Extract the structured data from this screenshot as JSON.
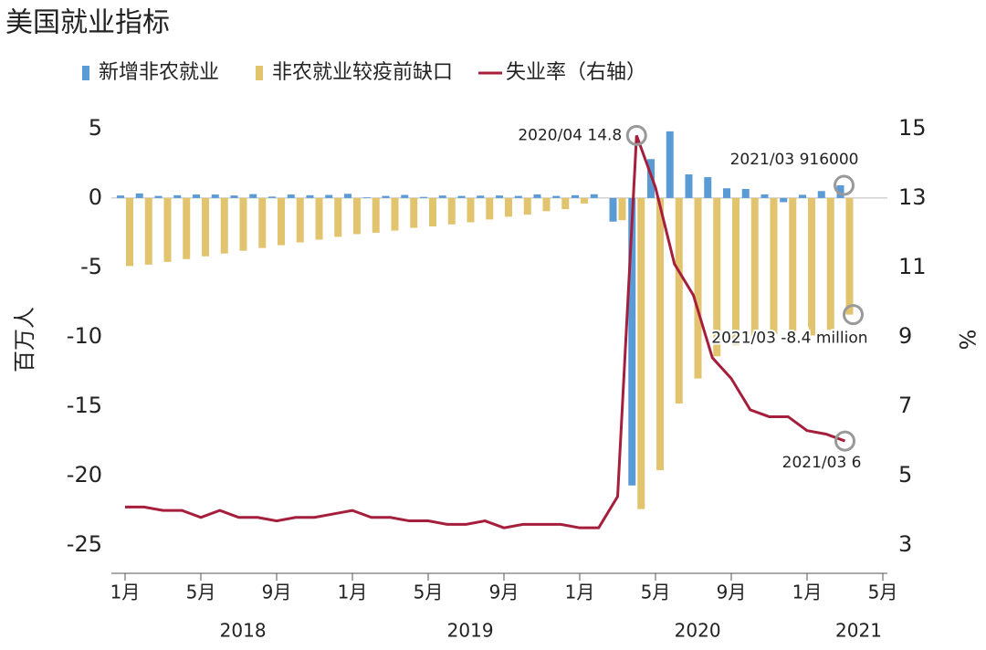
{
  "chart_data": {
    "type": "bar_line",
    "title": "美国就业指标",
    "ylabel": "百万人",
    "y2label": "%",
    "categories": [
      "1月",
      null,
      null,
      null,
      "5月",
      null,
      null,
      null,
      "9月",
      null,
      null,
      null,
      "1月",
      null,
      null,
      null,
      "5月",
      null,
      null,
      null,
      "9月",
      null,
      null,
      null,
      "1月",
      null,
      null,
      null,
      "5月",
      null,
      null,
      null,
      "9月",
      null,
      null,
      null,
      "1月",
      null,
      null,
      null,
      "5月"
    ],
    "years": [
      "2018",
      "2019",
      "2020",
      "2021"
    ],
    "series": [
      {
        "name": "新增非农就业",
        "type": "bar",
        "color": "#5b9bd5",
        "axis": "y",
        "values": [
          0.18,
          0.33,
          0.15,
          0.2,
          0.25,
          0.25,
          0.18,
          0.28,
          0.1,
          0.25,
          0.2,
          0.22,
          0.3,
          0.05,
          0.15,
          0.22,
          0.08,
          0.18,
          0.15,
          0.17,
          0.18,
          0.15,
          0.26,
          0.15,
          0.2,
          0.27,
          -1.7,
          -20.7,
          2.8,
          4.8,
          1.7,
          1.5,
          0.7,
          0.65,
          0.26,
          -0.3,
          0.23,
          0.5,
          0.916,
          null,
          null
        ]
      },
      {
        "name": "非农就业较疫前缺口",
        "type": "bar",
        "color": "#e2c46e",
        "axis": "y",
        "values": [
          -4.9,
          -4.8,
          -4.6,
          -4.4,
          -4.2,
          -4.0,
          -3.8,
          -3.6,
          -3.4,
          -3.2,
          -3.0,
          -2.8,
          -2.6,
          -2.5,
          -2.35,
          -2.15,
          -2.05,
          -1.9,
          -1.75,
          -1.55,
          -1.35,
          -1.2,
          -0.95,
          -0.8,
          -0.4,
          0,
          -1.6,
          -22.4,
          -19.6,
          -14.8,
          -13.0,
          -11.4,
          -10.6,
          -10.0,
          -9.8,
          -10.1,
          -9.9,
          -9.5,
          -8.4,
          null,
          null
        ]
      },
      {
        "name": "失业率（右轴）",
        "type": "line",
        "color": "#a51f3c",
        "axis": "y2",
        "values": [
          4.1,
          4.1,
          4.0,
          4.0,
          3.8,
          4.0,
          3.8,
          3.8,
          3.7,
          3.8,
          3.8,
          3.9,
          4.0,
          3.8,
          3.8,
          3.7,
          3.7,
          3.6,
          3.6,
          3.7,
          3.5,
          3.6,
          3.6,
          3.6,
          3.5,
          3.5,
          4.4,
          14.8,
          13.3,
          11.1,
          10.2,
          8.4,
          7.8,
          6.9,
          6.7,
          6.7,
          6.3,
          6.2,
          6.0,
          null,
          null
        ]
      }
    ],
    "annotations": [
      "2020/04 14.8",
      "2021/03 916000",
      "2021/03 -8.4 million",
      "2021/03 6"
    ],
    "ylim": [
      -26.5,
      6.5
    ],
    "yticks": [
      5,
      0,
      -5,
      -10,
      -15,
      -20,
      -25
    ],
    "y2lim": [
      2.4,
      15.6
    ],
    "y2ticks": [
      15,
      13,
      11,
      9,
      7,
      5,
      3
    ],
    "legend": "top"
  }
}
